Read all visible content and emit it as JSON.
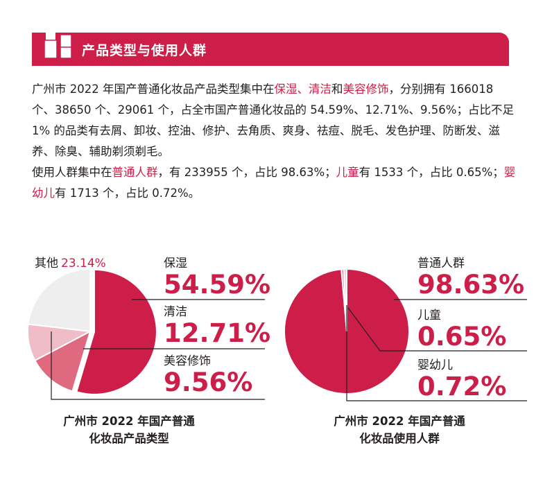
{
  "header": {
    "title": "产品类型与使用人群"
  },
  "intro": {
    "p1_a": "广州市 2022 年国产普通化妆品产品类型集中在",
    "p1_h1": "保湿",
    "p1_sep1": "、",
    "p1_h2": "清洁",
    "p1_and": "和",
    "p1_h3": "美容修饰",
    "p1_b": "，分别拥有 166018 个、38650 个、29061 个，占全市国产普通化妆品的 54.59%、12.71%、9.56%；占比不足 1% 的品类有去屑、卸妆、控油、修护、去角质、爽身、祛痘、脱毛、发色护理、防断发、滋养、除臭、辅助剃须剃毛。",
    "p2_a": "使用人群集中在",
    "p2_h1": "普通人群",
    "p2_b": "，有 233955 个，占比 98.63%；",
    "p2_h2": "儿童",
    "p2_c": "有 1533 个，占比 0.65%；",
    "p2_h3": "婴幼儿",
    "p2_d": "有 1713 个，占比 0.72%。"
  },
  "chart_data": [
    {
      "type": "pie",
      "title": "广州市 2022 年国产普通化妆品产品类型",
      "title_line1": "广州市 2022 年国产普通",
      "title_line2": "化妆品产品类型",
      "slices": [
        {
          "name": "保湿",
          "value": 54.59,
          "label": "54.59%",
          "color": "#cc1e48"
        },
        {
          "name": "清洁",
          "value": 12.71,
          "label": "12.71%",
          "color": "#df6a80"
        },
        {
          "name": "美容修饰",
          "value": 9.56,
          "label": "9.56%",
          "color": "#f0bcc8"
        },
        {
          "name": "其他",
          "value": 23.14,
          "label": "23.14%",
          "color": "#eeeeee"
        }
      ]
    },
    {
      "type": "pie",
      "title": "广州市 2022 年国产普通化妆品使用人群",
      "title_line1": "广州市 2022 年国产普通",
      "title_line2": "化妆品使用人群",
      "slices": [
        {
          "name": "普通人群",
          "value": 98.63,
          "label": "98.63%",
          "color": "#cc1e48"
        },
        {
          "name": "儿童",
          "value": 0.65,
          "label": "0.65%",
          "color": "#e8899c"
        },
        {
          "name": "婴幼儿",
          "value": 0.72,
          "label": "0.72%",
          "color": "#f4c9d3"
        }
      ]
    }
  ],
  "colors": {
    "accent": "#cc1e48",
    "text": "#231f20"
  }
}
